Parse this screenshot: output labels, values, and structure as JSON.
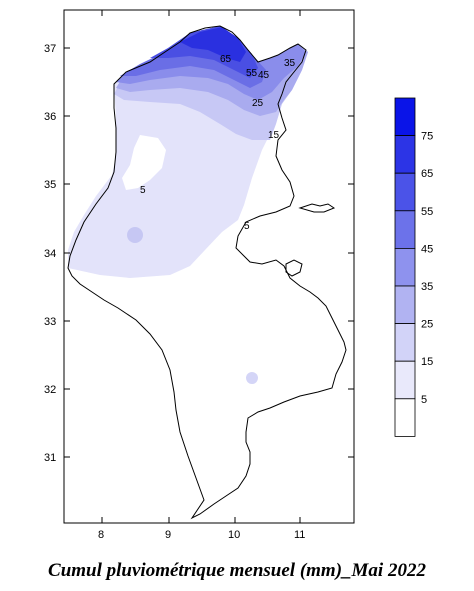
{
  "caption": "Cumul pluviométrique mensuel (mm)_Mai 2022",
  "axes": {
    "x_ticks": [
      "8",
      "9",
      "10",
      "11"
    ],
    "y_ticks": [
      "37",
      "36",
      "35",
      "34",
      "33",
      "32",
      "31"
    ]
  },
  "contour_labels": [
    "65",
    "55",
    "45",
    "35",
    "25",
    "15",
    "5",
    "5"
  ],
  "legend": {
    "labels": [
      "75",
      "65",
      "55",
      "45",
      "35",
      "25",
      "15",
      "5"
    ],
    "colors": [
      "#0a14e8",
      "#2c34e6",
      "#4b53e8",
      "#6c72ea",
      "#8e92ee",
      "#b1b3f2",
      "#d2d3f8",
      "#e9e9fb",
      "#ffffff"
    ]
  }
}
